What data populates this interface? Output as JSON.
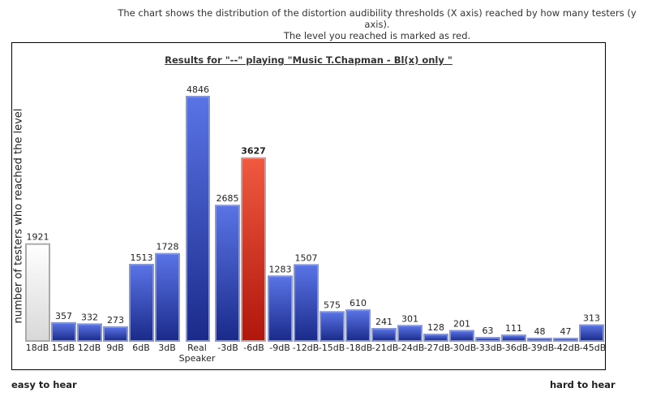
{
  "caption": {
    "line1": "The chart shows the distribution of the distortion audibility thresholds (X axis) reached by how many testers (y axis).",
    "line2": "The level you reached is marked as red."
  },
  "footer": {
    "left": "easy to hear",
    "right": "hard to hear"
  },
  "colors": {
    "bar_default": "#2c44b8",
    "bar_highlight": "#d42a1a",
    "bar_reference": "#eeeeee"
  },
  "chart_data": {
    "type": "bar",
    "title": "Results for \"--\" playing \"Music T.Chapman - Bl(x) only \"",
    "xlabel": "",
    "ylabel": "number of testers who reached the level",
    "ylim": [
      0,
      4846
    ],
    "grid": false,
    "legend": "none",
    "categories": [
      "18dB",
      "15dB",
      "12dB",
      "9dB",
      "6dB",
      "3dB",
      "Real Speaker",
      "-3dB",
      "-6dB",
      "-9dB",
      "-12dB",
      "-15dB",
      "-18dB",
      "-21dB",
      "-24dB",
      "-27dB",
      "-30dB",
      "-33dB",
      "-36dB",
      "-39dB",
      "-42dB",
      "-45dB"
    ],
    "values": [
      1921,
      357,
      332,
      273,
      1513,
      1728,
      4846,
      2685,
      3627,
      1283,
      1507,
      575,
      610,
      241,
      301,
      128,
      201,
      63,
      111,
      48,
      47,
      313
    ],
    "highlight_category": "-6dB",
    "reference_category": "18dB"
  }
}
